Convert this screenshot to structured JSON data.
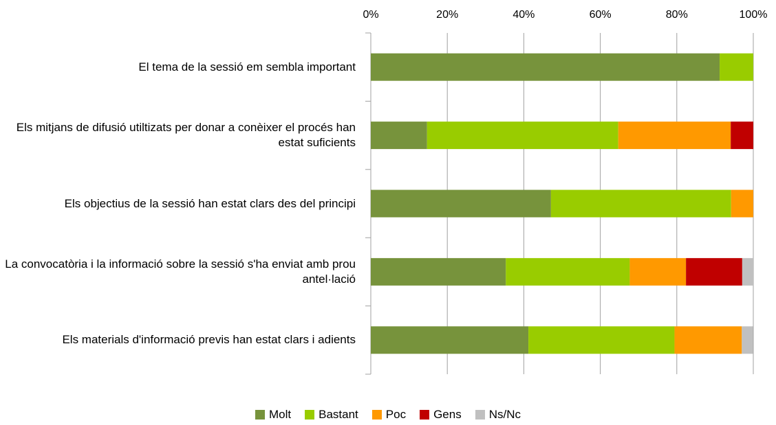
{
  "chart_data": {
    "type": "stacked_bar_horizontal",
    "categories": [
      "El tema de la sessió em sembla important",
      "Els mitjans de difusió utiltizats per donar a conèixer el procés han estat suficients",
      "Els objectius de la sessió han estat clars des del principi",
      "La convocatòria i la informació sobre la sessió s'ha enviat amb prou antel·lació",
      "Els materials d'informació previs han estat clars i adients"
    ],
    "series": [
      {
        "name": "Molt",
        "color": "#77933c",
        "values": [
          91.2,
          14.7,
          47.1,
          35.3,
          41.2
        ]
      },
      {
        "name": "Bastant",
        "color": "#99cc00",
        "values": [
          8.8,
          50,
          47.1,
          32.4,
          38.2
        ]
      },
      {
        "name": "Poc",
        "color": "#ff9900",
        "values": [
          0,
          29.4,
          5.8,
          14.7,
          17.6
        ]
      },
      {
        "name": "Gens",
        "color": "#c00000",
        "values": [
          0,
          5.9,
          0,
          14.7,
          0
        ]
      },
      {
        "name": "Ns/Nc",
        "color": "#c0c0c0",
        "values": [
          0,
          0,
          0,
          2.9,
          2.9
        ]
      }
    ],
    "xlim": [
      0,
      100
    ],
    "xticks": [
      {
        "value": 0,
        "label": "0%"
      },
      {
        "value": 20,
        "label": "20%"
      },
      {
        "value": 40,
        "label": "40%"
      },
      {
        "value": 60,
        "label": "60%"
      },
      {
        "value": 80,
        "label": "80%"
      },
      {
        "value": 100,
        "label": "100%"
      }
    ],
    "grid": true,
    "legend": "bottom"
  }
}
